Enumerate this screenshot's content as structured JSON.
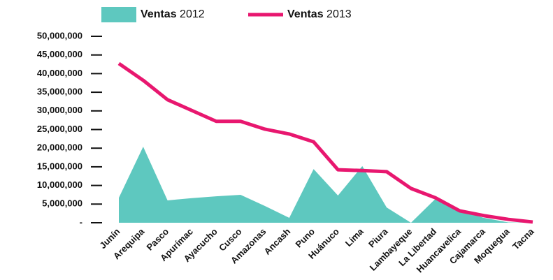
{
  "chart_data": {
    "type": "area-line",
    "categories": [
      "Junín",
      "Arequipa",
      "Pasco",
      "Apurímac",
      "Ayacucho",
      "Cusco",
      "Amazonas",
      "Ancash",
      "Puno",
      "Huánuco",
      "Lima",
      "Piura",
      "Lambayeque",
      "La Libertad",
      "Huancavelica",
      "Cajamarca",
      "Moquegua",
      "Tacna"
    ],
    "series": [
      {
        "name": "Ventas 2012",
        "type": "area",
        "color": "#5ec8bf",
        "values": [
          6700000,
          20400000,
          6000000,
          6600000,
          7100000,
          7500000,
          4500000,
          1300000,
          14400000,
          7300000,
          15200000,
          4100000,
          0,
          6400000,
          3200000,
          1300000,
          100000,
          0
        ]
      },
      {
        "name": "Ventas 2013",
        "type": "line",
        "color": "#e8176f",
        "values": [
          42700000,
          38200000,
          33000000,
          30100000,
          27200000,
          27200000,
          25100000,
          23800000,
          21700000,
          14200000,
          14000000,
          13700000,
          9200000,
          6700000,
          3200000,
          1900000,
          900000,
          200000
        ]
      }
    ],
    "ylim": [
      0,
      50000000
    ],
    "yticks": [
      {
        "value": 0,
        "label": "-"
      },
      {
        "value": 5000000,
        "label": "5,000,000"
      },
      {
        "value": 10000000,
        "label": "10,000,000"
      },
      {
        "value": 15000000,
        "label": "15,000,000"
      },
      {
        "value": 20000000,
        "label": "20,000,000"
      },
      {
        "value": 25000000,
        "label": "25,000,000"
      },
      {
        "value": 30000000,
        "label": "30,000,000"
      },
      {
        "value": 35000000,
        "label": "35,000,000"
      },
      {
        "value": 40000000,
        "label": "40,000,000"
      },
      {
        "value": 45000000,
        "label": "45,000,000"
      },
      {
        "value": 50000000,
        "label": "50,000,000"
      }
    ],
    "legend": "top"
  }
}
